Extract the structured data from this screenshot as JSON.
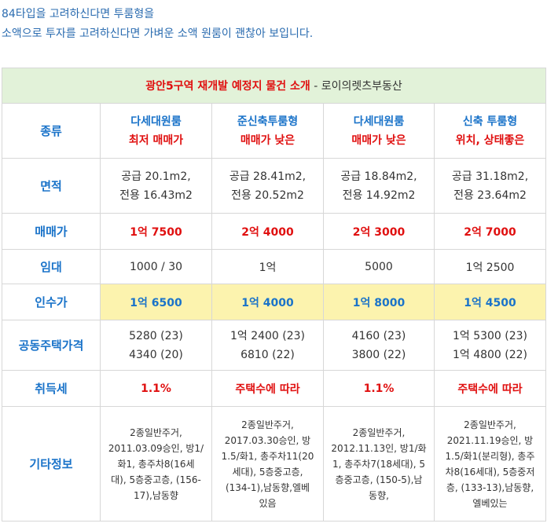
{
  "intro": {
    "line1": "84타입을 고려하신다면 투룸형을",
    "line2": "소액으로 투자를 고려하신다면 가벼운 소액 원룸이 괜찮아 보입니다."
  },
  "table": {
    "title": "광안5구역 재개발 예정지 물건 소개",
    "title_sep": " - ",
    "subtitle": "로이의렛츠부동산",
    "rows": {
      "type": {
        "label": "종류",
        "cols": [
          {
            "line1": "다세대원룸",
            "line2": "최저 매매가"
          },
          {
            "line1": "준신축투룸형",
            "line2": "매매가 낮은"
          },
          {
            "line1": "다세대원룸",
            "line2": "매매가 낮은"
          },
          {
            "line1": "신축 투룸형",
            "line2": "위치, 상태좋은"
          }
        ]
      },
      "area": {
        "label": "면적",
        "cols": [
          {
            "line1": "공급 20.1m2,",
            "line2": "전용 16.43m2"
          },
          {
            "line1": "공급 28.41m2,",
            "line2": "전용 20.52m2"
          },
          {
            "line1": "공급 18.84m2,",
            "line2": "전용 14.92m2"
          },
          {
            "line1": "공급 31.18m2,",
            "line2": "전용 23.64m2"
          }
        ]
      },
      "price": {
        "label": "매매가",
        "cols": [
          "1억 7500",
          "2억 4000",
          "2억 3000",
          "2억 7000"
        ]
      },
      "rent": {
        "label": "임대",
        "cols": [
          "1000 / 30",
          "1억",
          "5000",
          "1억 2500"
        ]
      },
      "acquisition": {
        "label": "인수가",
        "cols": [
          "1억 6500",
          "1억 4000",
          "1억 8000",
          "1억 4500"
        ]
      },
      "official_price": {
        "label": "공동주택가격",
        "cols": [
          {
            "line1": "5280 (23)",
            "line2": "4340 (20)"
          },
          {
            "line1": "1억 2400 (23)",
            "line2": "6810 (22)"
          },
          {
            "line1": "4160 (23)",
            "line2": "3800 (22)"
          },
          {
            "line1": "1억 5300 (23)",
            "line2": "1억 4800 (22)"
          }
        ]
      },
      "tax": {
        "label": "취득세",
        "cols": [
          "1.1%",
          "주택수에 따라",
          "1.1%",
          "주택수에 따라"
        ]
      },
      "etc": {
        "label": "기타정보",
        "cols": [
          [
            "2종일반주거,",
            "2011.03.09승인, 방1/",
            "화1, 총주차8(16세",
            "대), 5층중고층, (156-",
            "17),남동향"
          ],
          [
            "2종일반주거,",
            "2017.03.30승인, 방",
            "1.5/화1, 총주차11(20",
            "세대), 5층중고층,",
            "(134-1),남동향,엘베",
            "있음"
          ],
          [
            "2종일반주거,",
            "2012.11.13인, 방1/화",
            "1, 총주차7(18세대), 5",
            "층중고층, (150-5),남",
            "동향,"
          ],
          [
            "2종일반주거,",
            "2021.11.19승인, 방",
            "1.5/화1(분리형), 총주",
            "차8(16세대), 5층중저",
            "층, (133-13),남동향,",
            "엘베있는"
          ]
        ]
      }
    }
  }
}
